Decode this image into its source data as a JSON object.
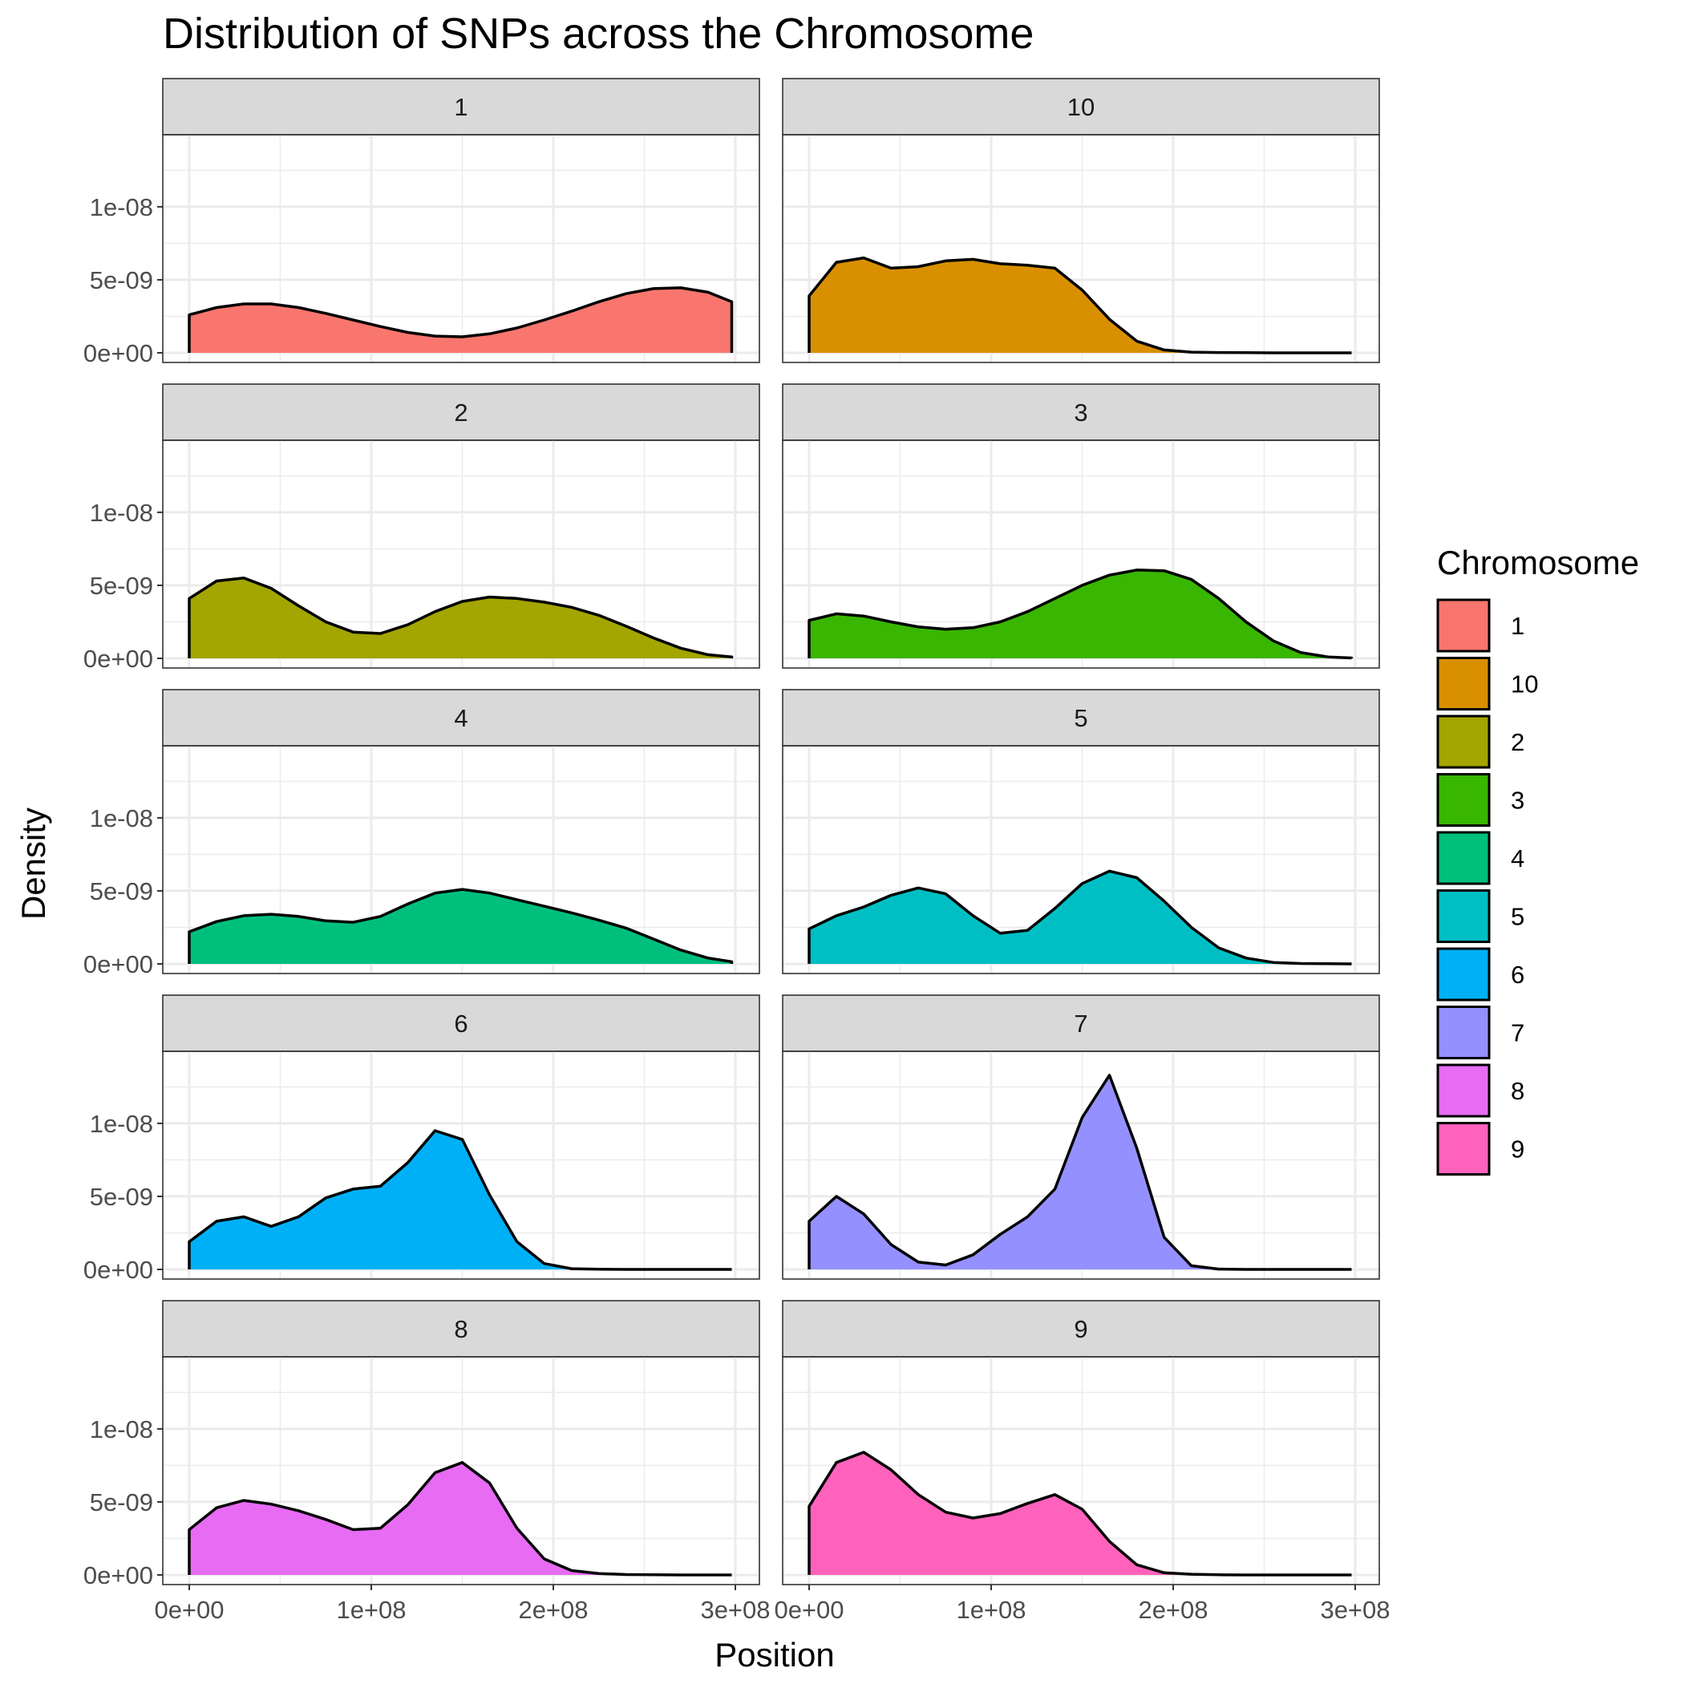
{
  "chart_data": {
    "type": "area",
    "subtype": "faceted-density",
    "title": "Distribution of SNPs across the Chromosome",
    "xlabel": "Position",
    "ylabel": "Density",
    "xlim": [
      0,
      300000000
    ],
    "ylim": [
      0,
      1.4e-08
    ],
    "x_ticks": [
      {
        "value": 0,
        "label": "0e+00"
      },
      {
        "value": 100000000,
        "label": "1e+08"
      },
      {
        "value": 200000000,
        "label": "2e+08"
      },
      {
        "value": 300000000,
        "label": "3e+08"
      }
    ],
    "y_ticks": [
      {
        "value": 0,
        "label": "0e+00"
      },
      {
        "value": 5e-09,
        "label": "5e-09"
      },
      {
        "value": 1e-08,
        "label": "1e-08"
      }
    ],
    "grid": true,
    "legend": {
      "title": "Chromosome",
      "position": "right"
    },
    "x": [
      0,
      15000000,
      30000000,
      45000000,
      60000000,
      75000000,
      90000000,
      105000000,
      120000000,
      135000000,
      150000000,
      165000000,
      180000000,
      195000000,
      210000000,
      225000000,
      240000000,
      255000000,
      270000000,
      285000000,
      298000000
    ],
    "series": [
      {
        "name": "1",
        "color": "#F8766D",
        "values": [
          2.6e-09,
          3.1e-09,
          3.35e-09,
          3.35e-09,
          3.1e-09,
          2.7e-09,
          2.25e-09,
          1.8e-09,
          1.4e-09,
          1.15e-09,
          1.1e-09,
          1.3e-09,
          1.7e-09,
          2.25e-09,
          2.85e-09,
          3.5e-09,
          4.05e-09,
          4.4e-09,
          4.45e-09,
          4.15e-09,
          3.5e-09
        ]
      },
      {
        "name": "10",
        "color": "#D89000",
        "values": [
          3.9e-09,
          6.2e-09,
          6.5e-09,
          5.8e-09,
          5.9e-09,
          6.3e-09,
          6.4e-09,
          6.1e-09,
          6e-09,
          5.8e-09,
          4.3e-09,
          2.3e-09,
          8e-10,
          2e-10,
          5e-11,
          2e-11,
          1e-11,
          0.0,
          0.0,
          0.0,
          0.0
        ]
      },
      {
        "name": "2",
        "color": "#A3A500",
        "values": [
          4.1e-09,
          5.3e-09,
          5.5e-09,
          4.8e-09,
          3.6e-09,
          2.5e-09,
          1.8e-09,
          1.7e-09,
          2.3e-09,
          3.2e-09,
          3.9e-09,
          4.2e-09,
          4.1e-09,
          3.85e-09,
          3.5e-09,
          2.95e-09,
          2.2e-09,
          1.4e-09,
          7e-10,
          2.5e-10,
          1e-10
        ]
      },
      {
        "name": "3",
        "color": "#39B600",
        "values": [
          2.6e-09,
          3.05e-09,
          2.9e-09,
          2.5e-09,
          2.15e-09,
          2e-09,
          2.1e-09,
          2.5e-09,
          3.2e-09,
          4.1e-09,
          5e-09,
          5.7e-09,
          6.05e-09,
          6e-09,
          5.4e-09,
          4.1e-09,
          2.5e-09,
          1.2e-09,
          4e-10,
          1e-10,
          3e-11
        ]
      },
      {
        "name": "4",
        "color": "#00BF7D",
        "values": [
          2.2e-09,
          2.9e-09,
          3.3e-09,
          3.4e-09,
          3.25e-09,
          2.95e-09,
          2.85e-09,
          3.25e-09,
          4.1e-09,
          4.85e-09,
          5.1e-09,
          4.85e-09,
          4.4e-09,
          3.95e-09,
          3.5e-09,
          3e-09,
          2.45e-09,
          1.7e-09,
          9.5e-10,
          4e-10,
          1.5e-10
        ]
      },
      {
        "name": "5",
        "color": "#00BFC4",
        "values": [
          2.4e-09,
          3.3e-09,
          3.9e-09,
          4.7e-09,
          5.2e-09,
          4.8e-09,
          3.3e-09,
          2.1e-09,
          2.3e-09,
          3.8e-09,
          5.5e-09,
          6.35e-09,
          5.9e-09,
          4.3e-09,
          2.5e-09,
          1.1e-09,
          4e-10,
          1e-10,
          3e-11,
          1e-11,
          0.0
        ]
      },
      {
        "name": "6",
        "color": "#00B0F6",
        "values": [
          1.9e-09,
          3.3e-09,
          3.6e-09,
          2.95e-09,
          3.6e-09,
          4.9e-09,
          5.5e-09,
          5.7e-09,
          7.3e-09,
          9.5e-09,
          8.9e-09,
          5.1e-09,
          1.9e-09,
          4e-10,
          5e-11,
          1e-11,
          0.0,
          0.0,
          0.0,
          0.0,
          0.0
        ]
      },
      {
        "name": "7",
        "color": "#9590FF",
        "values": [
          3.3e-09,
          5e-09,
          3.8e-09,
          1.7e-09,
          5e-10,
          3e-10,
          1e-09,
          2.4e-09,
          3.6e-09,
          5.5e-09,
          1.04e-08,
          1.33e-08,
          8.3e-09,
          2.2e-09,
          2.5e-10,
          2e-11,
          0.0,
          0.0,
          0.0,
          0.0,
          0.0
        ]
      },
      {
        "name": "8",
        "color": "#E76BF3",
        "values": [
          3.1e-09,
          4.6e-09,
          5.1e-09,
          4.85e-09,
          4.4e-09,
          3.8e-09,
          3.1e-09,
          3.2e-09,
          4.8e-09,
          7e-09,
          7.7e-09,
          6.3e-09,
          3.2e-09,
          1.1e-09,
          3e-10,
          1e-10,
          3e-11,
          1e-11,
          0.0,
          0.0,
          0.0
        ]
      },
      {
        "name": "9",
        "color": "#FF62BC",
        "values": [
          4.7e-09,
          7.7e-09,
          8.4e-09,
          7.2e-09,
          5.5e-09,
          4.3e-09,
          3.9e-09,
          4.2e-09,
          4.9e-09,
          5.5e-09,
          4.5e-09,
          2.3e-09,
          7e-10,
          1.5e-10,
          5e-11,
          1e-11,
          0.0,
          0.0,
          0.0,
          0.0,
          0.0
        ]
      }
    ]
  }
}
